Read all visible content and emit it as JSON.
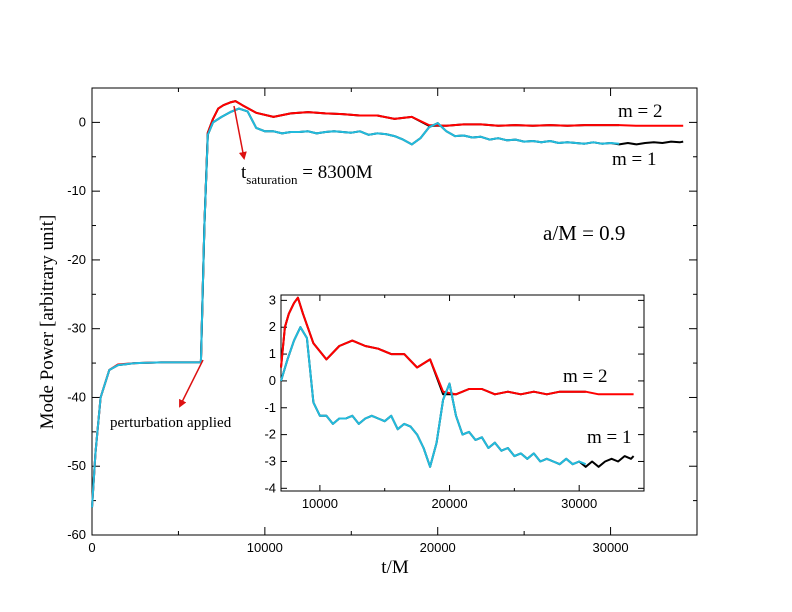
{
  "chart_data": {
    "type": "line",
    "title": "",
    "xlabel": "t/M",
    "ylabel": "Mode Power [arbitrary unit]",
    "xlim": [
      0,
      35000
    ],
    "ylim": [
      -60,
      5
    ],
    "x_ticks": [
      0,
      10000,
      20000,
      30000
    ],
    "y_ticks": [
      0,
      -10,
      -20,
      -30,
      -40,
      -50,
      -60
    ],
    "series": [
      {
        "name": "m = 2 (black)",
        "color": "#000000",
        "x": [
          0,
          200,
          500,
          1000,
          1500,
          2500,
          4000,
          5500,
          6300,
          6500,
          6700,
          7000,
          7300,
          7600,
          8000,
          8300,
          8700,
          9500,
          10500,
          11500,
          12500,
          13500,
          14500,
          15500,
          16500,
          17500,
          18500,
          19500,
          20500,
          21500,
          22500,
          23500,
          24500,
          25500,
          26500,
          27500,
          28500,
          29500,
          30500
        ],
        "y": [
          -56,
          -48,
          -40,
          -36,
          -35.3,
          -35,
          -34.9,
          -34.9,
          -34.9,
          -15,
          -1.5,
          0.5,
          2,
          2.5,
          2.9,
          3.1,
          2.5,
          1.4,
          0.8,
          1.3,
          1.5,
          1.3,
          1.2,
          1.0,
          1.0,
          0.5,
          0.8,
          -0.5,
          -0.5,
          -0.3,
          -0.3,
          -0.5,
          -0.4,
          -0.5,
          -0.4,
          -0.5,
          -0.4,
          -0.4,
          -0.4
        ]
      },
      {
        "name": "m = 2 (red)",
        "color": "#ff0000",
        "x": [
          0,
          200,
          500,
          1000,
          1500,
          2500,
          4000,
          5500,
          6300,
          6500,
          6700,
          7000,
          7300,
          7600,
          8000,
          8300,
          8700,
          9500,
          10500,
          11500,
          12500,
          13500,
          14500,
          15500,
          16500,
          17500,
          18500,
          19500,
          20500,
          21500,
          22500,
          23500,
          24500,
          25500,
          26500,
          27500,
          28500,
          29500,
          30500,
          31500,
          32500,
          33500,
          34200
        ],
        "y": [
          -56,
          -48,
          -40,
          -36,
          -35.2,
          -35,
          -34.9,
          -34.9,
          -34.9,
          -15,
          -1.5,
          0.5,
          2,
          2.5,
          2.9,
          3.1,
          2.5,
          1.4,
          0.8,
          1.3,
          1.5,
          1.3,
          1.2,
          1.0,
          1.0,
          0.5,
          0.8,
          -0.4,
          -0.5,
          -0.3,
          -0.3,
          -0.5,
          -0.4,
          -0.5,
          -0.4,
          -0.5,
          -0.4,
          -0.4,
          -0.4,
          -0.5,
          -0.5,
          -0.5,
          -0.5
        ]
      },
      {
        "name": "m = 1 (black)",
        "color": "#000000",
        "x": [
          6300,
          6500,
          6700,
          7000,
          7500,
          8000,
          8500,
          9000,
          9500,
          10000,
          10500,
          11000,
          11500,
          12000,
          12500,
          13000,
          13500,
          14000,
          14500,
          15000,
          15500,
          16000,
          16500,
          17000,
          17500,
          18000,
          18500,
          19000,
          19500,
          20000,
          20500,
          21000,
          21500,
          22000,
          22500,
          23000,
          23500,
          24000,
          24500,
          25000,
          25500,
          26000,
          26500,
          27000,
          27500,
          28000,
          28500,
          29000,
          29500,
          30000,
          30500,
          31000,
          31500,
          32000,
          32500,
          33000,
          33500,
          34000,
          34200
        ],
        "y": [
          -34.9,
          -15,
          -1.8,
          0,
          0.8,
          1.5,
          2,
          1.6,
          -0.8,
          -1.3,
          -1.3,
          -1.6,
          -1.4,
          -1.4,
          -1.3,
          -1.6,
          -1.4,
          -1.3,
          -1.4,
          -1.5,
          -1.3,
          -1.8,
          -1.6,
          -1.7,
          -2,
          -2.5,
          -3.2,
          -2.3,
          -0.7,
          -0.1,
          -1.3,
          -2,
          -1.9,
          -2.2,
          -2.1,
          -2.5,
          -2.3,
          -2.6,
          -2.5,
          -2.8,
          -2.7,
          -2.9,
          -2.7,
          -3.0,
          -2.9,
          -3.0,
          -3.1,
          -2.9,
          -3.1,
          -3.0,
          -3.2,
          -3.0,
          -3.2,
          -3.0,
          -2.9,
          -3.0,
          -2.8,
          -2.9,
          -2.8
        ]
      },
      {
        "name": "m = 1 (cyan)",
        "color": "#22bbdd",
        "x": [
          0,
          200,
          500,
          1000,
          1500,
          2500,
          4000,
          5500,
          6300,
          6500,
          6700,
          7000,
          7500,
          8000,
          8500,
          9000,
          9500,
          10000,
          10500,
          11000,
          11500,
          12000,
          12500,
          13000,
          13500,
          14000,
          14500,
          15000,
          15500,
          16000,
          16500,
          17000,
          17500,
          18000,
          18500,
          19000,
          19500,
          20000,
          20500,
          21000,
          21500,
          22000,
          22500,
          23000,
          23500,
          24000,
          24500,
          25000,
          25500,
          26000,
          26500,
          27000,
          27500,
          28000,
          28500,
          29000,
          29500,
          30000,
          30500
        ],
        "y": [
          -56,
          -48,
          -40,
          -36,
          -35.3,
          -35,
          -34.9,
          -34.9,
          -34.9,
          -15,
          -1.8,
          0,
          0.8,
          1.5,
          2,
          1.6,
          -0.8,
          -1.3,
          -1.3,
          -1.6,
          -1.4,
          -1.4,
          -1.3,
          -1.6,
          -1.4,
          -1.3,
          -1.4,
          -1.5,
          -1.3,
          -1.8,
          -1.6,
          -1.7,
          -2,
          -2.5,
          -3.2,
          -2.3,
          -0.7,
          -0.1,
          -1.3,
          -2,
          -1.9,
          -2.2,
          -2.1,
          -2.5,
          -2.3,
          -2.6,
          -2.5,
          -2.8,
          -2.7,
          -2.9,
          -2.7,
          -3.0,
          -2.9,
          -3.0,
          -3.1,
          -2.9,
          -3.1,
          -3.0,
          -3.1
        ]
      }
    ],
    "annotations": {
      "m2_label": "m = 2",
      "m1_label": "m = 1",
      "spin": "a/M = 0.9",
      "perturbation": "perturbation applied",
      "t_main": "t",
      "t_sub": "saturation",
      "t_value": " = 8300M"
    },
    "inset": {
      "xlim": [
        7000,
        35000
      ],
      "ylim": [
        -4.1,
        3.2
      ],
      "x_ticks": [
        10000,
        20000,
        30000
      ],
      "y_ticks": [
        3,
        2,
        1,
        0,
        -1,
        -2,
        -3,
        -4
      ],
      "m2_label": "m = 2",
      "m1_label": "m = 1"
    },
    "colors": {
      "axis": "#000000",
      "arrow": "#dd1111"
    }
  }
}
